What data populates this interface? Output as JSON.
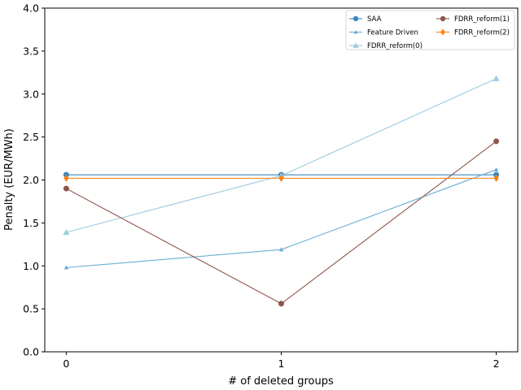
{
  "chart_data": {
    "type": "line",
    "title": "",
    "xlabel": "# of deleted groups",
    "ylabel": "Penalty (EUR/MWh)",
    "x": [
      0,
      1,
      2
    ],
    "xticks": [
      "0",
      "1",
      "2"
    ],
    "xlim": [
      -0.1,
      2.1
    ],
    "ylim": [
      0.0,
      4.0
    ],
    "yticks": [
      "0.0",
      "0.5",
      "1.0",
      "1.5",
      "2.0",
      "2.5",
      "3.0",
      "3.5",
      "4.0"
    ],
    "grid": false,
    "legend_position": "top-right",
    "series": [
      {
        "name": "SAA",
        "values": [
          2.06,
          2.06,
          2.06
        ],
        "color": "#3a87bf",
        "marker": "circle"
      },
      {
        "name": "Feature Driven",
        "values": [
          0.98,
          1.19,
          2.12
        ],
        "color": "#6aaed6",
        "marker": "triangle-small"
      },
      {
        "name": "FDRR_reform(0)",
        "values": [
          1.39,
          2.05,
          3.18
        ],
        "color": "#9ecae1",
        "marker": "triangle"
      },
      {
        "name": "FDRR_reform(1)",
        "values": [
          1.9,
          0.56,
          2.45
        ],
        "color": "#8c564b",
        "marker": "circle"
      },
      {
        "name": "FDRR_reform(2)",
        "values": [
          2.02,
          2.02,
          2.02
        ],
        "color": "#ff7f0e",
        "marker": "diamond"
      }
    ]
  }
}
